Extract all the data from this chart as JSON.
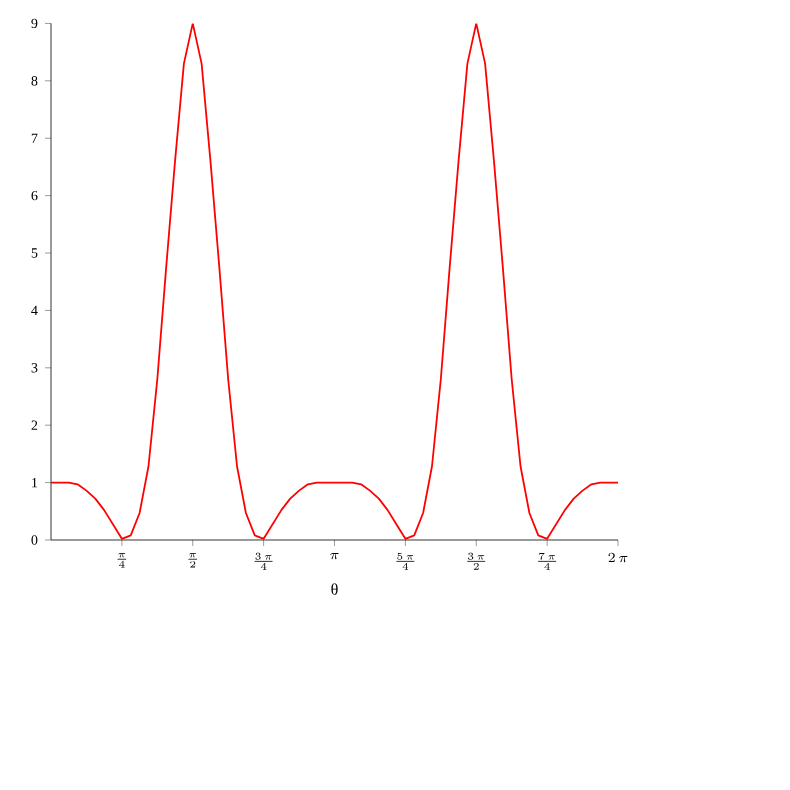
{
  "chart_data": {
    "type": "line",
    "xlabel": "θ",
    "categories": [
      null,
      null,
      null,
      null,
      null,
      null,
      null,
      null,
      "\\frac{\\pi}{4}",
      null,
      null,
      null,
      null,
      null,
      null,
      null,
      "\\frac{\\pi}{2}",
      null,
      null,
      null,
      null,
      null,
      null,
      null,
      "\\frac{3\\,\\pi}{4}",
      null,
      null,
      null,
      null,
      null,
      null,
      null,
      "\\pi",
      null,
      null,
      null,
      null,
      null,
      null,
      null,
      "\\frac{5\\,\\pi}{4}",
      null,
      null,
      null,
      null,
      null,
      null,
      null,
      "\\frac{3\\,\\pi}{2}",
      null,
      null,
      null,
      null,
      null,
      null,
      null,
      "\\frac{7\\,\\pi}{4}",
      null,
      null,
      null,
      null,
      null,
      null,
      null,
      "2\\,\\pi"
    ],
    "series": [
      {
        "color": "#ff0000",
        "values": [
          1.0,
          1.0,
          1.0,
          0.97,
          0.86,
          0.72,
          0.52,
          0.27,
          0.02,
          0.08,
          0.47,
          1.28,
          2.8,
          4.75,
          6.6,
          8.3,
          9,
          8.3,
          6.6,
          4.75,
          2.8,
          1.28,
          0.47,
          0.08,
          0.02,
          0.27,
          0.52,
          0.72,
          0.86,
          0.97,
          1.0,
          1.0,
          1.0,
          1.0,
          1.0,
          0.97,
          0.86,
          0.72,
          0.52,
          0.27,
          0.02,
          0.08,
          0.47,
          1.28,
          2.8,
          4.75,
          6.6,
          8.3,
          9,
          8.3,
          6.6,
          4.75,
          2.8,
          1.28,
          0.47,
          0.08,
          0.02,
          0.27,
          0.52,
          0.72,
          0.86,
          0.97,
          1.0,
          1.0,
          1.0
        ]
      }
    ],
    "ylim": [
      0,
      9
    ],
    "yticks": [
      0,
      1,
      2,
      3,
      4,
      5,
      6,
      7,
      8,
      9
    ],
    "grid": false,
    "marker": "none",
    "line_style": "solid"
  }
}
